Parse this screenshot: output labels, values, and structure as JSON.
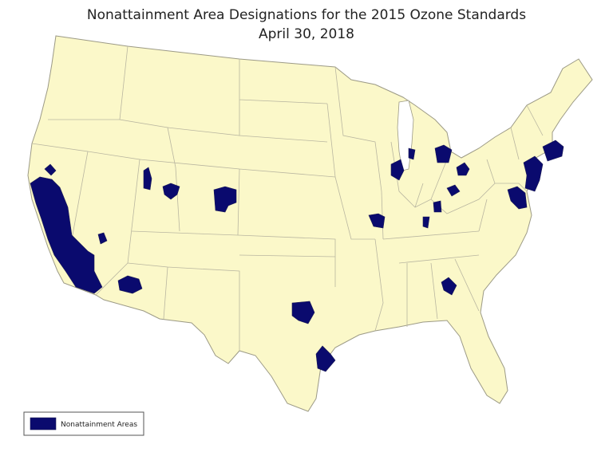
{
  "title": "Nonattainment Area Designations for the 2015 Ozone Standards",
  "subtitle": "April 30, 2018",
  "legend": {
    "label": "Nonattainment Areas"
  }
}
